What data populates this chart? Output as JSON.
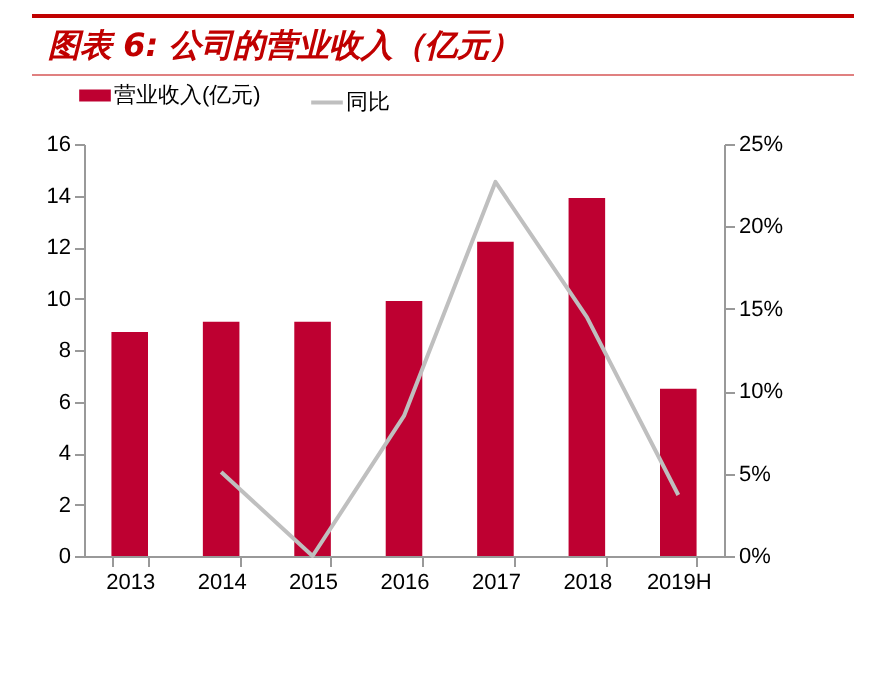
{
  "chart_data": {
    "type": "bar",
    "title": "图表 6: 公司的营业收入（亿元）",
    "categories": [
      "2013",
      "2014",
      "2015",
      "2016",
      "2017",
      "2018",
      "2019H"
    ],
    "series": [
      {
        "name": "营业收入(亿元)",
        "color": "#be0031",
        "values": [
          8.7,
          9.1,
          9.1,
          9.9,
          12.2,
          13.9,
          6.5
        ]
      },
      {
        "name": "同比",
        "color": "#bfbfbf",
        "type": "line",
        "axis": "y2",
        "values": [
          null,
          5.1,
          0.0,
          8.5,
          22.7,
          14.5,
          3.7
        ]
      }
    ],
    "ylim": [
      0,
      16
    ],
    "yticks": [
      0,
      2,
      4,
      6,
      8,
      10,
      12,
      14,
      16
    ],
    "y2lim": [
      0,
      25
    ],
    "y2ticks": [
      {
        "value": 0,
        "label": "0%"
      },
      {
        "value": 5,
        "label": "5%"
      },
      {
        "value": 10,
        "label": "10%"
      },
      {
        "value": 15,
        "label": "15%"
      },
      {
        "value": 20,
        "label": "20%"
      },
      {
        "value": 25,
        "label": "25%"
      }
    ],
    "legend": "top",
    "grid": false
  }
}
